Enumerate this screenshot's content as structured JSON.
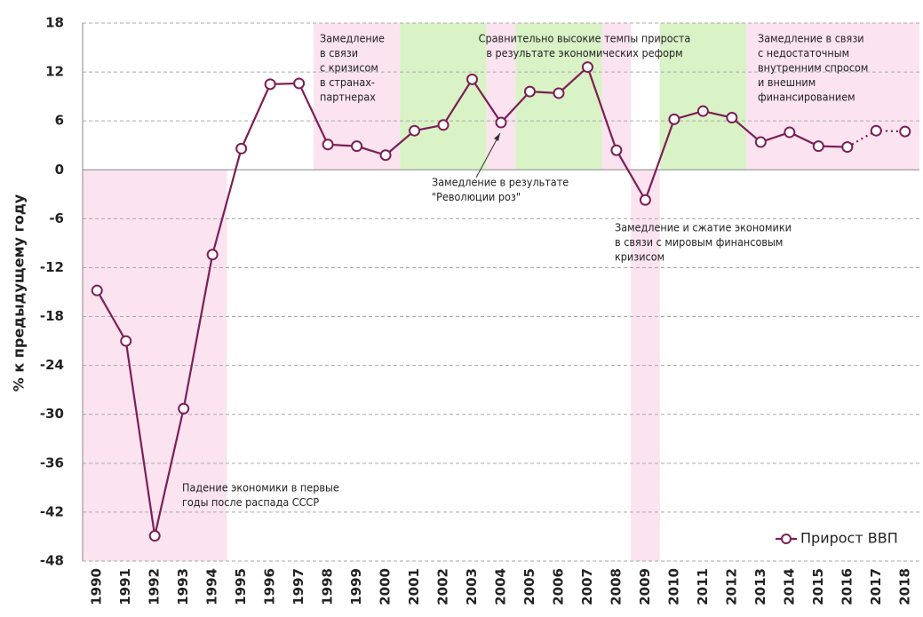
{
  "chart_data": {
    "type": "line",
    "y_label": "% к предыдущему году",
    "categories": [
      "1990",
      "1991",
      "1992",
      "1993",
      "1994",
      "1995",
      "1996",
      "1997",
      "1998",
      "1999",
      "2000",
      "2001",
      "2002",
      "2003",
      "2004",
      "2005",
      "2006",
      "2007",
      "2008",
      "2009",
      "2010",
      "2011",
      "2012",
      "2013",
      "2014",
      "2015",
      "2016",
      "2017",
      "2018"
    ],
    "series": [
      {
        "name": "Прирост ВВП",
        "color": "#7b1f56",
        "values": [
          -14.8,
          -21.0,
          -44.9,
          -29.3,
          -10.4,
          2.6,
          10.5,
          10.6,
          3.1,
          2.9,
          1.8,
          4.8,
          5.5,
          11.1,
          5.8,
          9.6,
          9.4,
          12.6,
          2.4,
          -3.7,
          6.2,
          7.2,
          6.4,
          3.4,
          4.6,
          2.9,
          2.8,
          4.8,
          4.7
        ]
      }
    ],
    "dashed_from": "2016",
    "ylim": [
      -48,
      18
    ],
    "yticks": [
      18,
      12,
      6,
      0,
      -6,
      -12,
      -18,
      -24,
      -30,
      -36,
      -42,
      -48
    ],
    "grid": true,
    "legend": "lower right",
    "bands": [
      {
        "from": "1990",
        "to": "1994",
        "color": "#fbe3ef",
        "side": "below"
      },
      {
        "from": "1998",
        "to": "2000",
        "color": "#fbe3ef",
        "side": "above"
      },
      {
        "from": "2001",
        "to": "2003",
        "color": "#d9f2c6",
        "side": "above"
      },
      {
        "from": "2004",
        "to": "2004",
        "color": "#fbe3ef",
        "side": "above"
      },
      {
        "from": "2005",
        "to": "2007",
        "color": "#d9f2c6",
        "side": "above"
      },
      {
        "from": "2008",
        "to": "2008",
        "color": "#fbe3ef",
        "side": "above"
      },
      {
        "from": "2009",
        "to": "2009",
        "color": "#fbe3ef",
        "side": "below"
      },
      {
        "from": "2010",
        "to": "2012",
        "color": "#d9f2c6",
        "side": "above"
      },
      {
        "from": "2013",
        "to": "2018",
        "color": "#fbe3ef",
        "side": "above"
      }
    ],
    "annotations": [
      {
        "lines": [
          "Замедление",
          "в связи",
          "с кризисом",
          "в странах-",
          "партнерах"
        ]
      },
      {
        "lines": [
          "Сравнительно высокие темпы прироста",
          "в результате экономических реформ"
        ],
        "color": "#2eaa3a"
      },
      {
        "lines": [
          "Замедление в связи",
          "с недостаточным",
          "внутренним спросом",
          "и внешним",
          "финансированием"
        ]
      },
      {
        "lines": [
          "Замедление в результате",
          "\"Революции роз\""
        ]
      },
      {
        "lines": [
          "Замедление и сжатие экономики",
          "в связи с мировым финансовым",
          "кризисом"
        ]
      },
      {
        "lines": [
          "Падение экономики в первые",
          "годы после распада СССР"
        ]
      }
    ]
  }
}
